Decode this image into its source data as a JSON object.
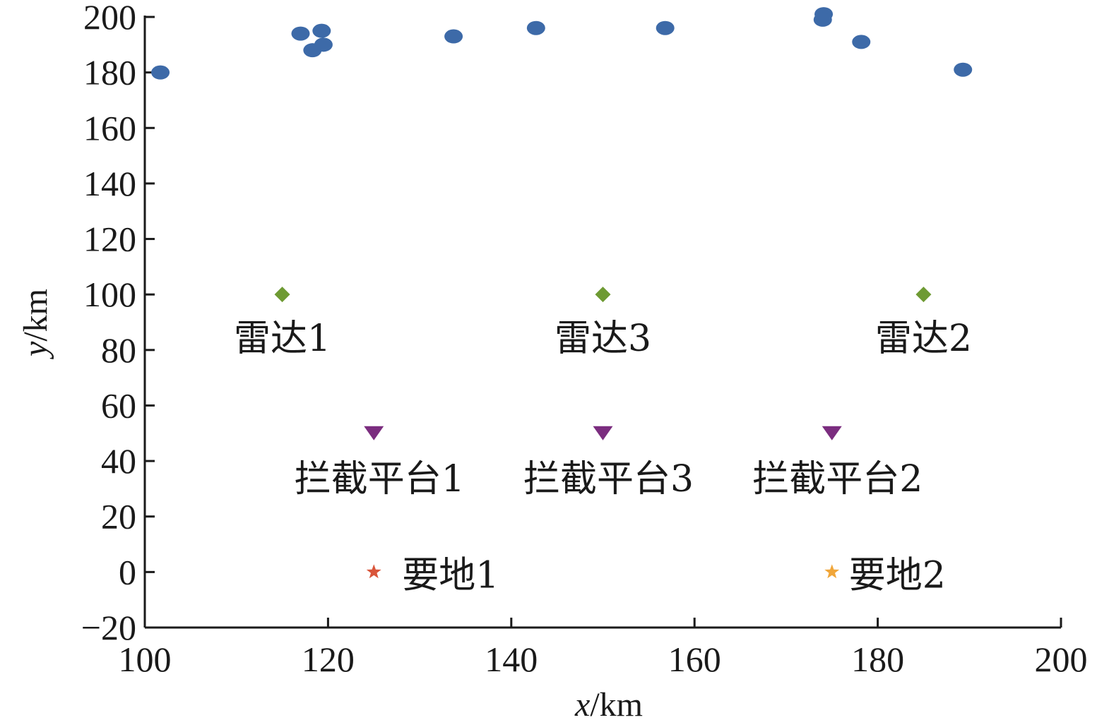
{
  "chart_data": {
    "type": "scatter",
    "xlabel": {
      "var": "x",
      "unit": "/km"
    },
    "ylabel": {
      "var": "y",
      "unit": "/km"
    },
    "xlim": [
      100,
      200
    ],
    "ylim": [
      -20,
      200
    ],
    "xticks": [
      "100",
      "120",
      "140",
      "160",
      "180",
      "200"
    ],
    "yticks": [
      "−20",
      "0",
      "20",
      "40",
      "60",
      "80",
      "100",
      "120",
      "140",
      "160",
      "180",
      "200"
    ],
    "xtick_values": [
      100,
      120,
      140,
      160,
      180,
      200
    ],
    "ytick_values": [
      -20,
      0,
      20,
      40,
      60,
      80,
      100,
      120,
      140,
      160,
      180,
      200
    ],
    "grid": false,
    "colors": {
      "targets": "#3d6aa8",
      "radars": "#6e9a33",
      "interceptors": "#7b2d7f",
      "site1": "#d9553a",
      "site2": "#f0a63a",
      "axis": "#1a1a1a"
    },
    "series": [
      {
        "role": "targets",
        "marker": "ellipse",
        "points": [
          {
            "x": 101.7,
            "y": 180
          },
          {
            "x": 117.0,
            "y": 194
          },
          {
            "x": 119.3,
            "y": 195
          },
          {
            "x": 118.3,
            "y": 188
          },
          {
            "x": 119.5,
            "y": 190
          },
          {
            "x": 133.7,
            "y": 193
          },
          {
            "x": 142.7,
            "y": 196
          },
          {
            "x": 156.8,
            "y": 196
          },
          {
            "x": 174.1,
            "y": 201
          },
          {
            "x": 174.0,
            "y": 199
          },
          {
            "x": 178.2,
            "y": 191
          },
          {
            "x": 189.3,
            "y": 181
          }
        ]
      },
      {
        "role": "radars",
        "marker": "diamond",
        "points": [
          {
            "x": 115,
            "y": 100,
            "label": "雷达1"
          },
          {
            "x": 150,
            "y": 100,
            "label": "雷达3"
          },
          {
            "x": 185,
            "y": 100,
            "label": "雷达2"
          }
        ]
      },
      {
        "role": "interceptors",
        "marker": "triangle-down",
        "points": [
          {
            "x": 125,
            "y": 50,
            "label": "拦截平台1"
          },
          {
            "x": 150,
            "y": 50,
            "label": "拦截平台3"
          },
          {
            "x": 175,
            "y": 50,
            "label": "拦截平台2"
          }
        ]
      },
      {
        "role": "site1",
        "marker": "star",
        "points": [
          {
            "x": 125,
            "y": 0,
            "label": "要地1"
          }
        ]
      },
      {
        "role": "site2",
        "marker": "star",
        "points": [
          {
            "x": 175,
            "y": 0,
            "label": "要地2"
          }
        ]
      }
    ]
  }
}
